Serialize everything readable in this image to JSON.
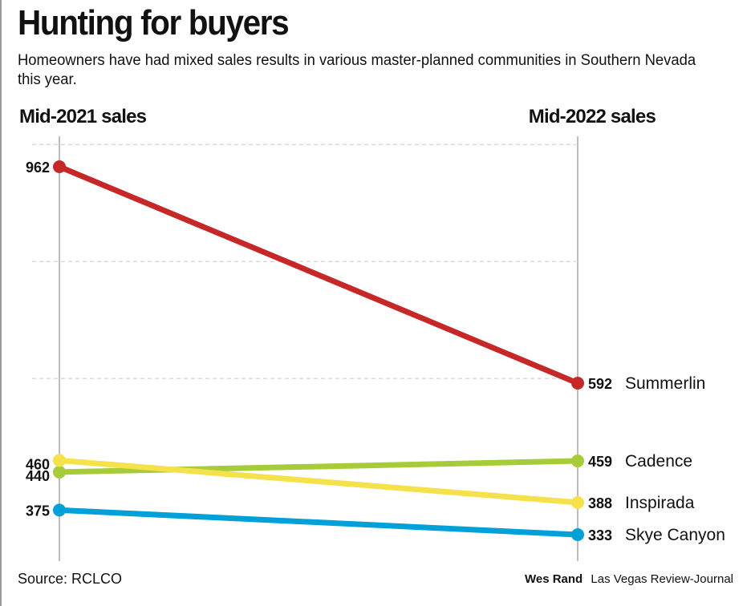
{
  "header": {
    "title": "Hunting for buyers",
    "subtitle": "Homeowners have had mixed sales results in various master-planned communities in Southern Nevada this year."
  },
  "chart_data": {
    "type": "line",
    "x": [
      "Mid-2021 sales",
      "Mid-2022 sales"
    ],
    "series": [
      {
        "name": "Summerlin",
        "values": [
          962,
          592
        ],
        "color": "#c62828"
      },
      {
        "name": "Cadence",
        "values": [
          440,
          459
        ],
        "color": "#a6cc3a"
      },
      {
        "name": "Inspirada",
        "values": [
          460,
          388
        ],
        "color": "#f5e14a"
      },
      {
        "name": "Skye Canyon",
        "values": [
          375,
          333
        ],
        "color": "#00a0d8"
      }
    ],
    "ylim": [
      300,
      1040
    ],
    "grid": true,
    "labels": "direct"
  },
  "footer": {
    "source": "Source: RCLCO",
    "byline": "Wes Rand",
    "publication": "Las Vegas Review-Journal"
  },
  "colors": {
    "text": "#111111",
    "grid": "#c8c8c8",
    "axis": "#bdbdbd"
  }
}
